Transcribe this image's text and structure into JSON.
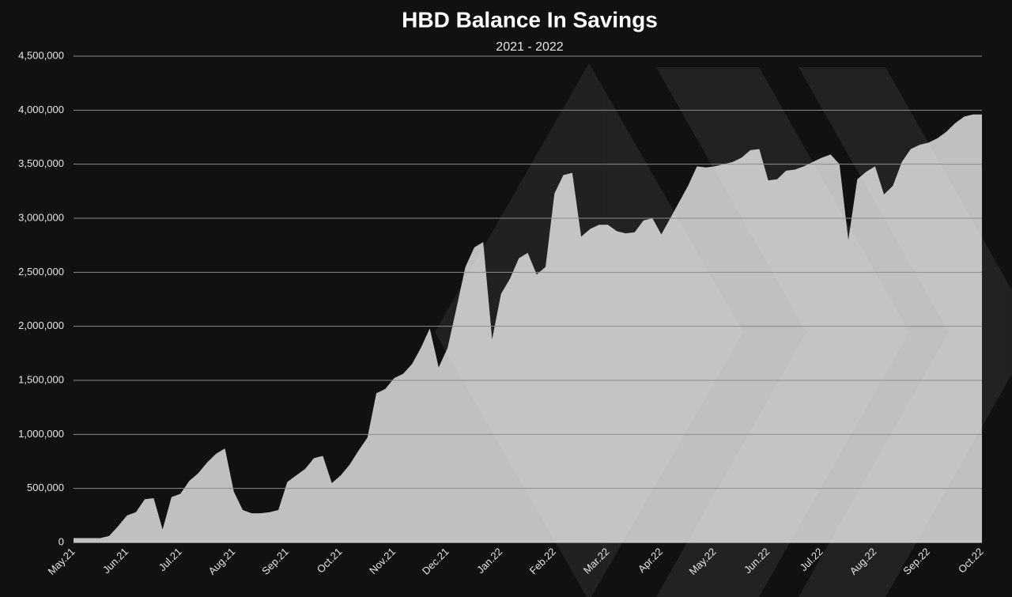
{
  "chart_data": {
    "type": "area",
    "title": "HBD Balance In Savings",
    "subtitle": "2021 - 2022",
    "categories": [
      "May.21",
      null,
      null,
      null,
      null,
      null,
      "Jun.21",
      null,
      null,
      null,
      null,
      null,
      "Jul.21",
      null,
      null,
      null,
      null,
      null,
      "Aug.21",
      null,
      null,
      null,
      null,
      null,
      "Sep.21",
      null,
      null,
      null,
      null,
      null,
      "Oct.21",
      null,
      null,
      null,
      null,
      null,
      "Nov.21",
      null,
      null,
      null,
      null,
      null,
      "Dec.21",
      null,
      null,
      null,
      null,
      null,
      "Jan.22",
      null,
      null,
      null,
      null,
      null,
      "Feb.22",
      null,
      null,
      null,
      null,
      null,
      "Mar.22",
      null,
      null,
      null,
      null,
      null,
      "Apr.22",
      null,
      null,
      null,
      null,
      null,
      "May.22",
      null,
      null,
      null,
      null,
      null,
      "Jun.22",
      null,
      null,
      null,
      null,
      null,
      "Jul.22",
      null,
      null,
      null,
      null,
      null,
      "Aug.22",
      null,
      null,
      null,
      null,
      null,
      "Sep.22",
      null,
      null,
      null,
      null,
      null,
      "Oct.22"
    ],
    "values": [
      40000,
      40000,
      40000,
      40000,
      60000,
      150000,
      250000,
      280000,
      400000,
      410000,
      120000,
      420000,
      450000,
      570000,
      640000,
      740000,
      820000,
      870000,
      470000,
      300000,
      270000,
      270000,
      280000,
      300000,
      560000,
      620000,
      680000,
      780000,
      800000,
      550000,
      620000,
      720000,
      850000,
      970000,
      1380000,
      1420000,
      1520000,
      1560000,
      1650000,
      1800000,
      1980000,
      1620000,
      1800000,
      2170000,
      2550000,
      2730000,
      2780000,
      1880000,
      2300000,
      2440000,
      2630000,
      2680000,
      2480000,
      2550000,
      3230000,
      3400000,
      3420000,
      2830000,
      2900000,
      2940000,
      2940000,
      2880000,
      2860000,
      2870000,
      2980000,
      3000000,
      2850000,
      3000000,
      3150000,
      3300000,
      3480000,
      3470000,
      3480000,
      3500000,
      3520000,
      3560000,
      3630000,
      3640000,
      3350000,
      3360000,
      3440000,
      3450000,
      3480000,
      3520000,
      3560000,
      3590000,
      3500000,
      2800000,
      3360000,
      3430000,
      3480000,
      3220000,
      3300000,
      3520000,
      3640000,
      3680000,
      3700000,
      3740000,
      3800000,
      3880000,
      3940000,
      3960000,
      3960000
    ],
    "color": "#c0c0c0",
    "ylim": [
      0,
      4500000
    ],
    "yticks": [
      0,
      {
        "value": 500000,
        "label": "500,000"
      },
      {
        "value": 1000000,
        "label": "1,000,000"
      },
      {
        "value": 1500000,
        "label": "1,500,000"
      },
      {
        "value": 2000000,
        "label": "2,000,000"
      },
      {
        "value": 2500000,
        "label": "2,500,000"
      },
      {
        "value": 3000000,
        "label": "3,000,000"
      },
      {
        "value": 3500000,
        "label": "3,500,000"
      },
      {
        "value": 4000000,
        "label": "4,000,000"
      },
      {
        "value": 4500000,
        "label": "4,500,000"
      }
    ],
    "grid": true
  }
}
